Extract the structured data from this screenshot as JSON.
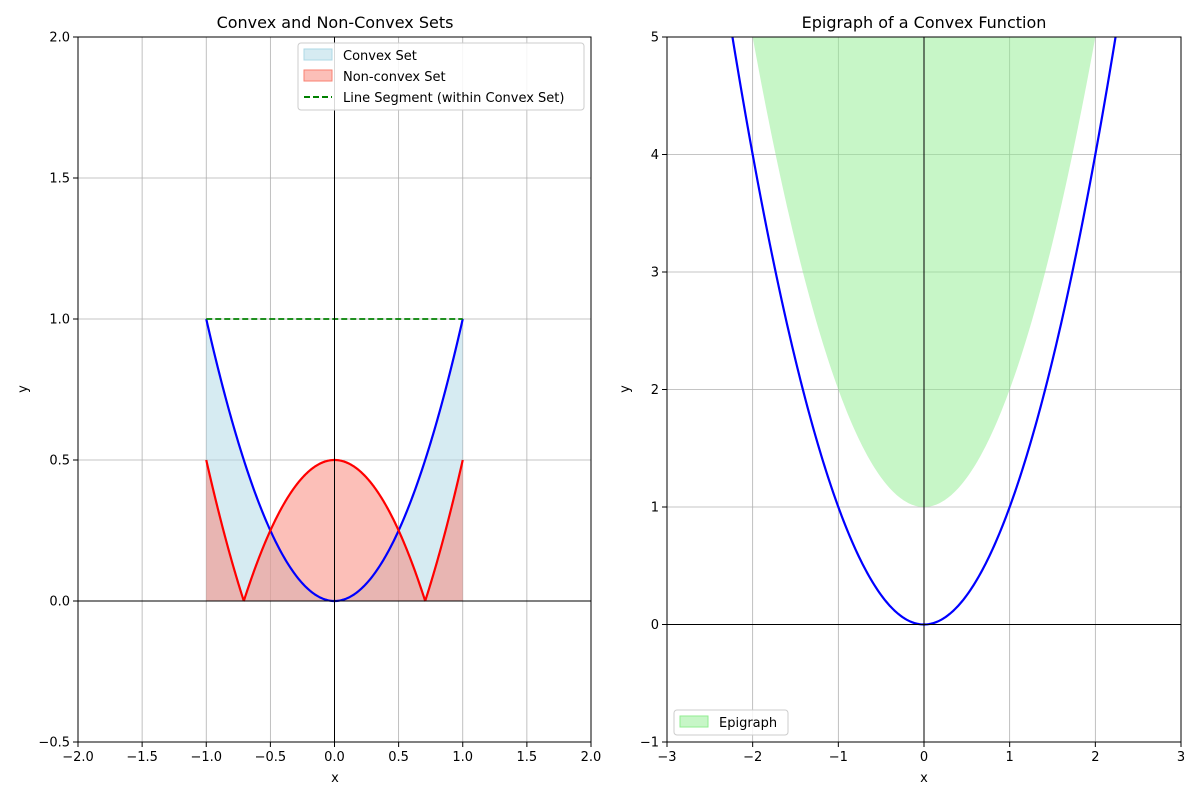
{
  "chart_data": [
    {
      "type": "area",
      "title": "Convex and Non-Convex Sets",
      "xlabel": "x",
      "ylabel": "y",
      "xlim": [
        -2.0,
        2.0
      ],
      "ylim": [
        -0.5,
        2.0
      ],
      "xticks": [
        -2.0,
        -1.5,
        -1.0,
        -0.5,
        0.0,
        0.5,
        1.0,
        1.5,
        2.0
      ],
      "xtick_labels": [
        "−2.0",
        "−1.5",
        "−1.0",
        "−0.5",
        "0.0",
        "0.5",
        "1.0",
        "1.5",
        "2.0"
      ],
      "yticks": [
        -0.5,
        0.0,
        0.5,
        1.0,
        1.5,
        2.0
      ],
      "ytick_labels": [
        "−0.5",
        "0.0",
        "0.5",
        "1.0",
        "1.5",
        "2.0"
      ],
      "grid": true,
      "legend_position": "top-right",
      "legend": [
        "Convex Set",
        "Non-convex Set",
        "Line Segment (within Convex Set)"
      ],
      "series": [
        {
          "name": "Convex Set",
          "kind": "fill",
          "function": "y = x^2",
          "domain": [
            -1,
            1
          ],
          "color": "#add8e6",
          "alpha": 0.5
        },
        {
          "name": "Non-convex Set",
          "kind": "fill",
          "function": "y = |0.5 - x^2|",
          "domain": [
            -1,
            1
          ],
          "color": "#fa8072",
          "alpha": 0.5
        },
        {
          "kind": "line",
          "function": "y = x^2",
          "domain": [
            -1,
            1
          ],
          "color": "#0000ff"
        },
        {
          "kind": "line",
          "function": "y = |0.5 - x^2|",
          "domain": [
            -1,
            1
          ],
          "color": "#ff0000"
        },
        {
          "name": "Line Segment (within Convex Set)",
          "kind": "dashed-line",
          "x": [
            -1,
            1
          ],
          "y": [
            1,
            1
          ],
          "color": "#008000"
        }
      ]
    },
    {
      "type": "area",
      "title": "Epigraph of a Convex Function",
      "xlabel": "x",
      "ylabel": "y",
      "xlim": [
        -3,
        3
      ],
      "ylim": [
        -1,
        5
      ],
      "xticks": [
        -3,
        -2,
        -1,
        0,
        1,
        2,
        3
      ],
      "xtick_labels": [
        "−3",
        "−2",
        "−1",
        "0",
        "1",
        "2",
        "3"
      ],
      "yticks": [
        -1,
        0,
        1,
        2,
        3,
        4,
        5
      ],
      "ytick_labels": [
        "−1",
        "0",
        "1",
        "2",
        "3",
        "4",
        "5"
      ],
      "grid": true,
      "legend_position": "bottom-left",
      "legend": [
        "Epigraph"
      ],
      "series": [
        {
          "kind": "line",
          "function": "y = x^2",
          "domain": [
            -3,
            3
          ],
          "color": "#0000ff"
        },
        {
          "name": "Epigraph",
          "kind": "fill-between",
          "lower": "y = x^2 + 1",
          "upper": "y = 5",
          "domain": [
            -2,
            2
          ],
          "color": "#90ee90",
          "alpha": 0.5
        }
      ]
    }
  ]
}
